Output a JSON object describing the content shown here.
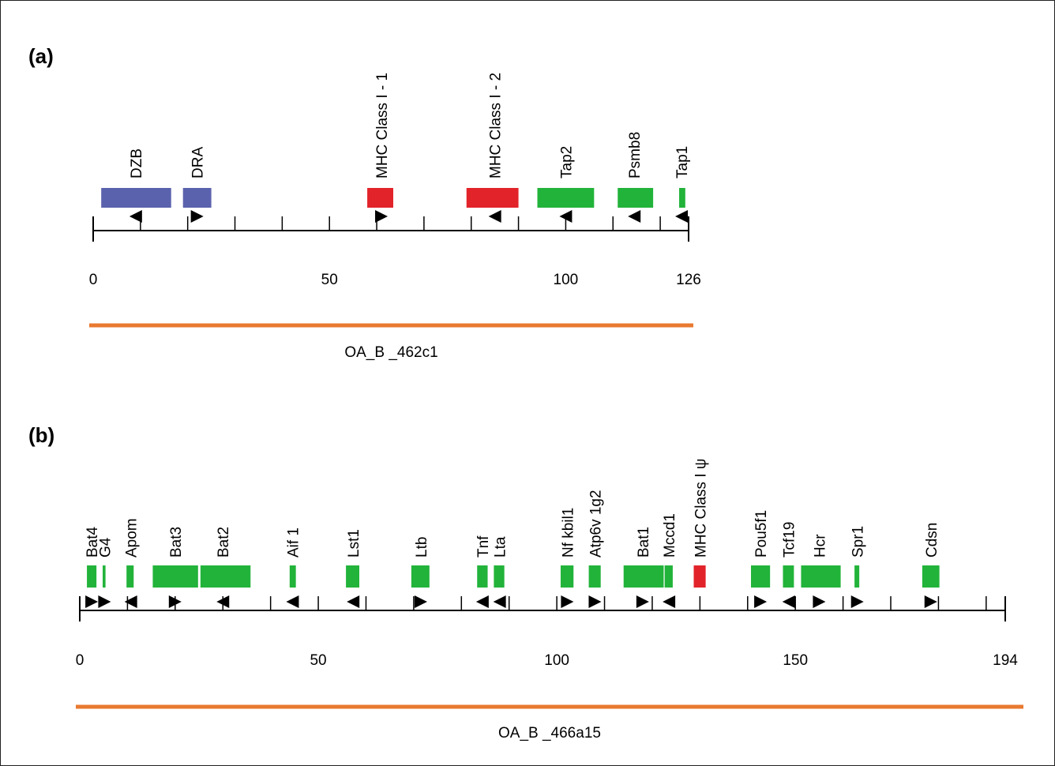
{
  "colors": {
    "class_ii": "#5b62ad",
    "class_i": "#e2232a",
    "other": "#22b33a",
    "clone": "#e87a30",
    "axis": "#000000"
  },
  "panels": [
    {
      "id": "a",
      "label": "(a)",
      "axis_max": 126,
      "tick_labels": [
        "0",
        "50",
        "100",
        "126"
      ],
      "tick_label_values": [
        0,
        50,
        100,
        126
      ],
      "clone_name": "OA_B _462c1",
      "genes": [
        {
          "name": "DZB",
          "start": 1.7,
          "end": 16.5,
          "color": "class_ii",
          "strand": "-",
          "label_pos": 9
        },
        {
          "name": "DRA",
          "start": 19,
          "end": 25,
          "color": "class_ii",
          "strand": "+",
          "label_pos": 22
        },
        {
          "name": "MHC Class I - 1",
          "start": 58,
          "end": 63.5,
          "color": "class_i",
          "strand": "+",
          "label_pos": 61
        },
        {
          "name": "MHC Class I - 2",
          "start": 79,
          "end": 90,
          "color": "class_i",
          "strand": "-",
          "label_pos": 85
        },
        {
          "name": "Tap2",
          "start": 94,
          "end": 106,
          "color": "other",
          "strand": "-",
          "label_pos": 100
        },
        {
          "name": "Psmb8",
          "start": 111,
          "end": 118.5,
          "color": "other",
          "strand": "-",
          "label_pos": 114.5
        },
        {
          "name": "Tap1",
          "start": 124,
          "end": 125.3,
          "color": "other",
          "strand": "-",
          "label_pos": 124.5
        }
      ]
    },
    {
      "id": "b",
      "label": "(b)",
      "axis_max": 194,
      "tick_labels": [
        "0",
        "50",
        "100",
        "150",
        "194"
      ],
      "tick_label_values": [
        0,
        50,
        100,
        150,
        194
      ],
      "clone_name": "OA_B _466a15",
      "genes": [
        {
          "name": "Bat4",
          "start": 1.5,
          "end": 3.5,
          "color": "other",
          "strand": "+",
          "label_pos": 2.5
        },
        {
          "name": "G4",
          "start": 4.8,
          "end": 5.4,
          "color": "other",
          "strand": "+",
          "label_pos": 5.2
        },
        {
          "name": "Apom",
          "start": 9.8,
          "end": 11.3,
          "color": "other",
          "strand": "-",
          "label_pos": 10.7
        },
        {
          "name": "Bat3",
          "start": 15.3,
          "end": 24.8,
          "color": "other",
          "strand": "+",
          "label_pos": 20
        },
        {
          "name": "Bat2",
          "start": 25.3,
          "end": 35.8,
          "color": "other",
          "strand": "-",
          "label_pos": 30
        },
        {
          "name": "Aif 1",
          "start": 44,
          "end": 45.3,
          "color": "other",
          "strand": "-",
          "label_pos": 44.6
        },
        {
          "name": "Lst1",
          "start": 55.8,
          "end": 58.6,
          "color": "other",
          "strand": "-",
          "label_pos": 57.3
        },
        {
          "name": "Ltb",
          "start": 69.5,
          "end": 73.3,
          "color": "other",
          "strand": "+",
          "label_pos": 71.5
        },
        {
          "name": "Tnf",
          "start": 83.3,
          "end": 85.5,
          "color": "other",
          "strand": "-",
          "label_pos": 84.4
        },
        {
          "name": "Lta",
          "start": 86.8,
          "end": 89,
          "color": "other",
          "strand": "-",
          "label_pos": 88
        },
        {
          "name": "Nf kbil1",
          "start": 100.8,
          "end": 103.5,
          "color": "other",
          "strand": "+",
          "label_pos": 102.2
        },
        {
          "name": "Atp6v 1g2",
          "start": 106.7,
          "end": 109.2,
          "color": "other",
          "strand": "+",
          "label_pos": 108
        },
        {
          "name": "Bat1",
          "start": 114,
          "end": 122.4,
          "color": "other",
          "strand": "+",
          "label_pos": 118
        },
        {
          "name": "Mccd1",
          "start": 122.6,
          "end": 124.3,
          "color": "other",
          "strand": "-",
          "label_pos": 123.5
        },
        {
          "name": "MHC Class I ψ",
          "start": 128.7,
          "end": 131.2,
          "color": "class_i",
          "strand": "",
          "label_pos": 130
        },
        {
          "name": "Pou5f1",
          "start": 140.7,
          "end": 144.7,
          "color": "other",
          "strand": "+",
          "label_pos": 142.7
        },
        {
          "name": "Tcf19",
          "start": 147.4,
          "end": 149.7,
          "color": "other",
          "strand": "-",
          "label_pos": 148.6
        },
        {
          "name": "Hcr",
          "start": 151.2,
          "end": 159.5,
          "color": "other",
          "strand": "+",
          "label_pos": 155
        },
        {
          "name": "Spr1",
          "start": 162.4,
          "end": 163.4,
          "color": "other",
          "strand": "+",
          "label_pos": 163
        },
        {
          "name": "Cdsn",
          "start": 176.6,
          "end": 180.2,
          "color": "other",
          "strand": "+",
          "label_pos": 178.4
        }
      ]
    }
  ]
}
